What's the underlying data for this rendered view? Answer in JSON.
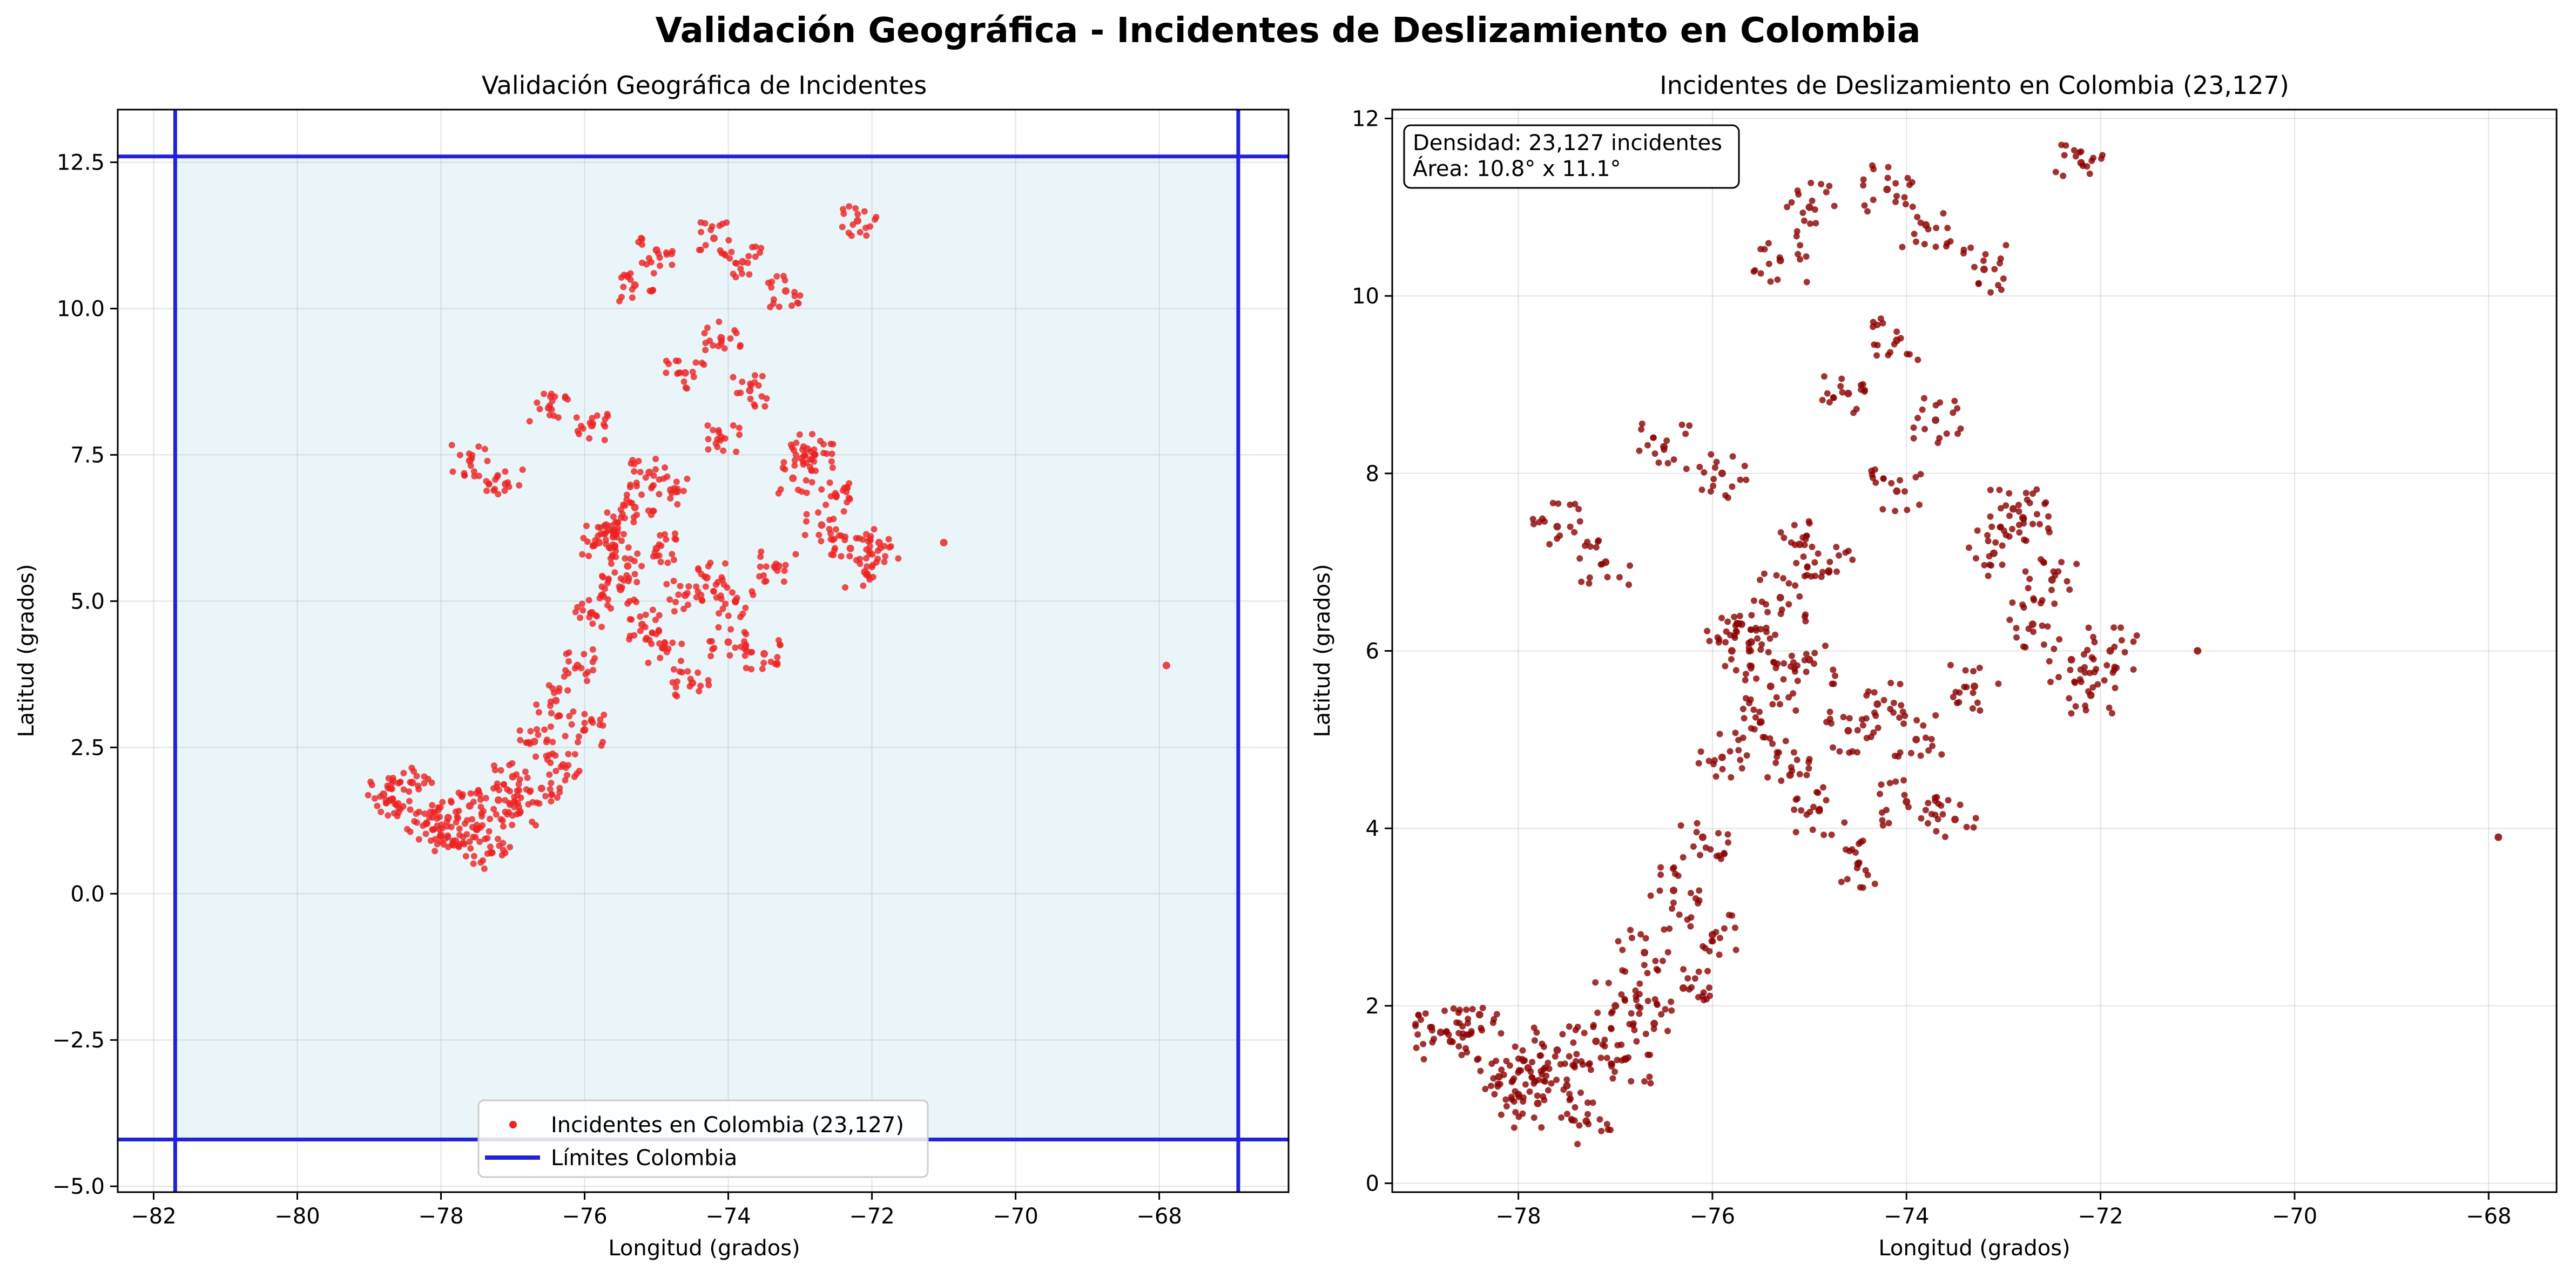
{
  "figure_title": "Validación Geográfica - Incidentes de Deslizamiento en Colombia",
  "colors": {
    "points_left": "#ee2222",
    "points_right": "#8b0000",
    "boundary": "#2222dd",
    "region_fill": "#eaf5fa",
    "grid": "#b0b0b0"
  },
  "chart_data": [
    {
      "type": "scatter",
      "title": "Validación Geográfica de Incidentes",
      "xlabel": "Longitud (grados)",
      "ylabel": "Latitud (grados)",
      "xlim": [
        -82.5,
        -66.2
      ],
      "ylim": [
        -5.1,
        13.4
      ],
      "xticks": [
        -82,
        -80,
        -78,
        -76,
        -74,
        -72,
        -70,
        -68
      ],
      "xtick_labels": [
        "−82",
        "−80",
        "−78",
        "−76",
        "−74",
        "−72",
        "−70",
        "−68"
      ],
      "yticks": [
        -5.0,
        -2.5,
        0.0,
        2.5,
        5.0,
        7.5,
        10.0,
        12.5
      ],
      "ytick_labels": [
        "−5.0",
        "−2.5",
        "0.0",
        "2.5",
        "5.0",
        "7.5",
        "10.0",
        "12.5"
      ],
      "grid": true,
      "boundary": {
        "lon_min": -81.7,
        "lon_max": -66.9,
        "lat_min": -4.2,
        "lat_max": 12.6
      },
      "legend": {
        "position": "lower center",
        "entries": [
          "Incidentes en Colombia (23,127)",
          "Límites Colombia"
        ]
      },
      "series": [
        {
          "name": "Incidentes en Colombia (23,127)",
          "x": [
            -78.8,
            -78.7,
            -78.4,
            -78.2,
            -78.0,
            -77.9,
            -77.8,
            -77.6,
            -77.5,
            -77.3,
            -77.2,
            -77.0,
            -76.9,
            -76.7,
            -76.6,
            -76.4,
            -76.3,
            -76.1,
            -76.0,
            -75.9,
            -75.8,
            -75.7,
            -75.6,
            -75.5,
            -75.4,
            -75.3,
            -75.2,
            -75.1,
            -75.0,
            -74.9,
            -74.8,
            -74.6,
            -74.5,
            -74.3,
            -74.1,
            -74.0,
            -73.9,
            -73.7,
            -73.5,
            -73.3,
            -73.1,
            -72.9,
            -72.7,
            -72.5,
            -72.3,
            -72.1,
            -71.9,
            -71.0,
            -67.9,
            -75.3,
            -75.0,
            -74.2,
            -73.8,
            -73.2,
            -72.8,
            -72.2,
            -77.6,
            -77.1,
            -76.5,
            -75.9,
            -74.6,
            -74.1
          ],
          "y": [
            1.7,
            1.6,
            1.9,
            1.2,
            1.0,
            1.3,
            0.9,
            1.5,
            1.1,
            0.7,
            1.6,
            2.0,
            1.4,
            2.6,
            1.8,
            3.3,
            2.2,
            3.9,
            2.8,
            4.8,
            6.0,
            6.3,
            6.1,
            5.2,
            5.6,
            6.6,
            4.6,
            7.2,
            5.9,
            4.2,
            6.9,
            5.1,
            3.6,
            5.4,
            7.8,
            4.3,
            5.0,
            8.6,
            4.1,
            5.6,
            7.1,
            7.6,
            6.3,
            6.8,
            5.9,
            5.5,
            6.0,
            6.0,
            3.9,
            10.4,
            11.0,
            11.2,
            10.8,
            10.3,
            7.5,
            11.5,
            7.4,
            7.0,
            8.3,
            8.0,
            8.9,
            9.5
          ]
        }
      ]
    },
    {
      "type": "scatter",
      "title": "Incidentes de Deslizamiento en Colombia (23,127)",
      "xlabel": "Longitud (grados)",
      "ylabel": "Latitud (grados)",
      "xlim": [
        -79.3,
        -67.3
      ],
      "ylim": [
        -0.1,
        12.1
      ],
      "xticks": [
        -78,
        -76,
        -74,
        -72,
        -70,
        -68
      ],
      "xtick_labels": [
        "−78",
        "−76",
        "−74",
        "−72",
        "−70",
        "−68"
      ],
      "yticks": [
        0,
        2,
        4,
        6,
        8,
        10,
        12
      ],
      "ytick_labels": [
        "0",
        "2",
        "4",
        "6",
        "8",
        "10",
        "12"
      ],
      "grid": true,
      "annotation_lines": [
        "Densidad: 23,127 incidentes",
        "Área: 10.8° x 11.1°"
      ],
      "series": [
        {
          "x": [
            -78.8,
            -78.7,
            -78.4,
            -78.2,
            -78.0,
            -77.9,
            -77.8,
            -77.6,
            -77.5,
            -77.3,
            -77.2,
            -77.0,
            -76.9,
            -76.7,
            -76.6,
            -76.4,
            -76.3,
            -76.1,
            -76.0,
            -75.9,
            -75.8,
            -75.7,
            -75.6,
            -75.5,
            -75.4,
            -75.3,
            -75.2,
            -75.1,
            -75.0,
            -74.9,
            -74.8,
            -74.6,
            -74.5,
            -74.3,
            -74.1,
            -74.0,
            -73.9,
            -73.7,
            -73.5,
            -73.3,
            -73.1,
            -72.9,
            -72.7,
            -72.5,
            -72.3,
            -72.1,
            -71.9,
            -71.0,
            -67.9,
            -75.3,
            -75.0,
            -74.2,
            -73.8,
            -73.2,
            -72.8,
            -72.2,
            -77.6,
            -77.1,
            -76.5,
            -75.9,
            -74.6,
            -74.1
          ],
          "y": [
            1.7,
            1.6,
            1.9,
            1.2,
            1.0,
            1.3,
            0.9,
            1.5,
            1.1,
            0.7,
            1.6,
            2.0,
            1.4,
            2.6,
            1.8,
            3.3,
            2.2,
            3.9,
            2.8,
            4.8,
            6.0,
            6.3,
            6.1,
            5.2,
            5.6,
            6.6,
            4.6,
            7.2,
            5.9,
            4.2,
            6.9,
            5.1,
            3.6,
            5.4,
            7.8,
            4.3,
            5.0,
            8.6,
            4.1,
            5.6,
            7.1,
            7.6,
            6.3,
            6.8,
            5.9,
            5.5,
            6.0,
            6.0,
            3.9,
            10.4,
            11.0,
            11.2,
            10.8,
            10.3,
            7.5,
            11.5,
            7.4,
            7.0,
            8.3,
            8.0,
            8.9,
            9.5
          ]
        }
      ]
    }
  ]
}
